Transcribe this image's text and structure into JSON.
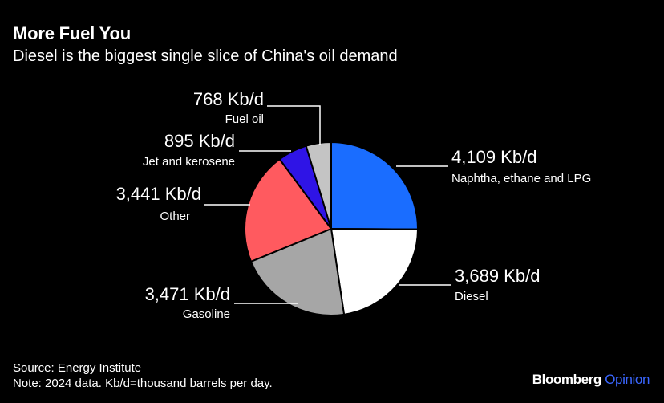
{
  "title": "More Fuel You",
  "subtitle": "Diesel is the biggest single slice of China's oil demand",
  "footer": {
    "source": "Source: Energy Institute",
    "note": "Note: 2024 data. Kb/d=thousand barrels per day."
  },
  "brand": {
    "name": "Bloomberg",
    "suffix": "Opinion",
    "suffix_color": "#3a66ff"
  },
  "chart_data": {
    "type": "pie",
    "unit": "Kb/d",
    "start": "12 o'clock",
    "direction": "clockwise",
    "slices": [
      {
        "label": "Naphtha, ethane and LPG",
        "value": 4109,
        "value_label": "4,109 Kb/d",
        "color": "#1a6dff"
      },
      {
        "label": "Diesel",
        "value": 3689,
        "value_label": "3,689 Kb/d",
        "color": "#ffffff"
      },
      {
        "label": "Gasoline",
        "value": 3471,
        "value_label": "3,471 Kb/d",
        "color": "#a6a6a6"
      },
      {
        "label": "Other",
        "value": 3441,
        "value_label": "3,441 Kb/d",
        "color": "#ff5a5f"
      },
      {
        "label": "Jet and kerosene",
        "value": 895,
        "value_label": "895 Kb/d",
        "color": "#2f14e6"
      },
      {
        "label": "Fuel oil",
        "value": 768,
        "value_label": "768 Kb/d",
        "color": "#c4c4c4"
      }
    ]
  }
}
